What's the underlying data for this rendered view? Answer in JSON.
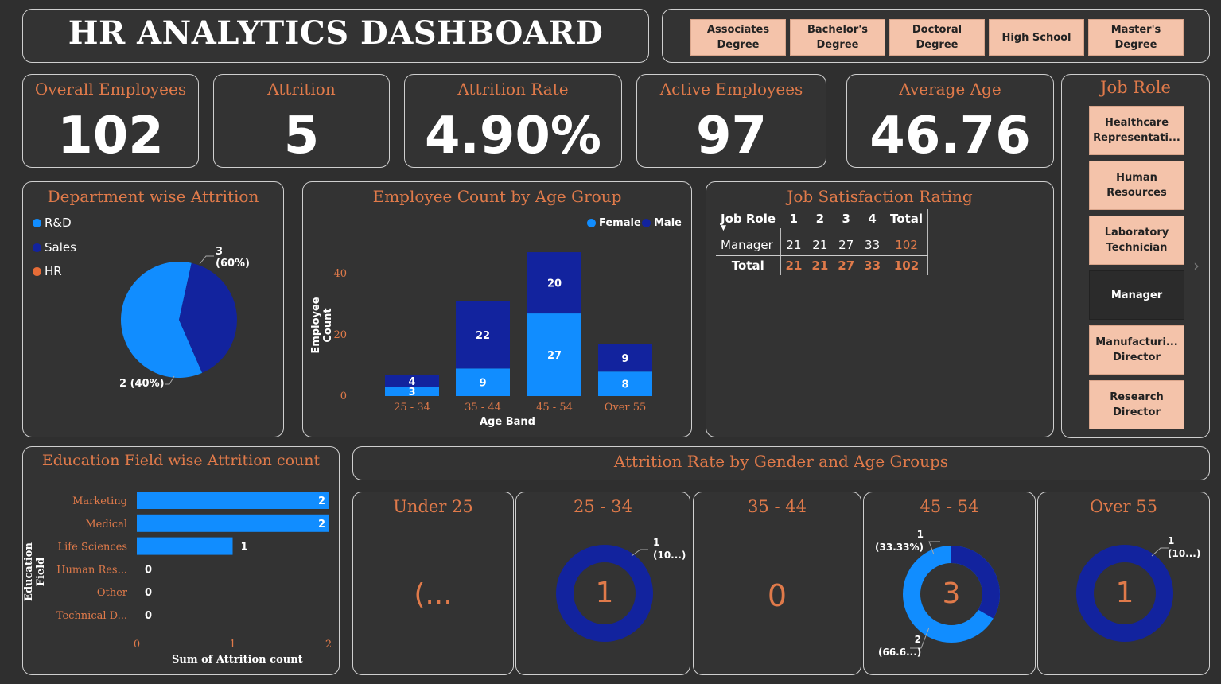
{
  "header": {
    "title": "HR ANALYTICS DASHBOARD"
  },
  "education_slicer": [
    "Associates Degree",
    "Bachelor's Degree",
    "Doctoral Degree",
    "High School",
    "Master's Degree"
  ],
  "kpis": [
    {
      "label": "Overall Employees",
      "value": "102"
    },
    {
      "label": "Attrition",
      "value": "5"
    },
    {
      "label": "Attrition Rate",
      "value": "4.90%"
    },
    {
      "label": "Active Employees",
      "value": "97"
    },
    {
      "label": "Average Age",
      "value": "46.76"
    }
  ],
  "job_role_slicer": {
    "title": "Job Role",
    "items": [
      "Healthcare Representati...",
      "Human Resources",
      "Laboratory Technician",
      "Manager",
      "Manufacturi... Director",
      "Research Director"
    ],
    "selected": "Manager"
  },
  "dept_attrition": {
    "title": "Department wise Attrition",
    "legend": [
      "R&D",
      "Sales",
      "HR"
    ],
    "label_top_count": "3",
    "label_top_pct": "(60%)",
    "label_bottom": "2 (40%)"
  },
  "age_group": {
    "title": "Employee Count by Age Group",
    "legend_female": "Female",
    "legend_male": "Male",
    "ylabel": "Employee Count",
    "xlabel": "Age Band",
    "yticks": [
      "0",
      "20",
      "40"
    ]
  },
  "job_satisfaction": {
    "title": "Job Satisfaction Rating",
    "headers": [
      "Job Role",
      "1",
      "2",
      "3",
      "4",
      "Total"
    ],
    "rows": [
      [
        "Manager",
        "21",
        "21",
        "27",
        "33",
        "102"
      ]
    ],
    "total_row": [
      "Total",
      "21",
      "21",
      "27",
      "33",
      "102"
    ]
  },
  "education_attrition": {
    "title": "Education Field wise Attrition count",
    "ylabel": "Education Field",
    "xlabel": "Sum of Attrition count",
    "xticks": [
      "0",
      "1",
      "2"
    ]
  },
  "gender_age": {
    "title": "Attrition Rate by Gender and Age Groups",
    "panels": [
      {
        "title": "Under 25",
        "center": "(..."
      },
      {
        "title": "25 - 34",
        "center": "1",
        "label_count": "1",
        "label_pct": "(10...)"
      },
      {
        "title": "35 - 44",
        "center": "0"
      },
      {
        "title": "45 - 54",
        "center": "3",
        "label_top_count": "1",
        "label_top_pct": "(33.33%)",
        "label_bottom_count": "2",
        "label_bottom_pct": "(66.6...)"
      },
      {
        "title": "Over 55",
        "center": "1",
        "label_count": "1",
        "label_pct": "(10...)"
      }
    ]
  },
  "colors": {
    "female": "#118dff",
    "male": "#12239e",
    "hr": "#e66c37",
    "accent": "#e07a4a",
    "slicer": "#f4c3aa"
  },
  "chart_data": [
    {
      "type": "pie",
      "title": "Department wise Attrition",
      "categories": [
        "R&D",
        "Sales",
        "HR"
      ],
      "values": [
        3,
        2,
        0
      ]
    },
    {
      "type": "bar",
      "title": "Employee Count by Age Group",
      "categories": [
        "25 - 34",
        "35 - 44",
        "45 - 54",
        "Over 55"
      ],
      "series": [
        {
          "name": "Female",
          "values": [
            3,
            9,
            27,
            8
          ]
        },
        {
          "name": "Male",
          "values": [
            4,
            22,
            20,
            9
          ]
        }
      ],
      "xlabel": "Age Band",
      "ylabel": "Employee Count",
      "ylim": [
        0,
        48
      ],
      "stacked": true
    },
    {
      "type": "bar",
      "title": "Education Field wise Attrition count",
      "orientation": "horizontal",
      "categories": [
        "Marketing",
        "Medical",
        "Life Sciences",
        "Human Res...",
        "Other",
        "Technical D..."
      ],
      "values": [
        2,
        2,
        1,
        0,
        0,
        0
      ],
      "xlabel": "Sum of Attrition count",
      "ylabel": "Education Field",
      "xlim": [
        0,
        2
      ]
    }
  ]
}
